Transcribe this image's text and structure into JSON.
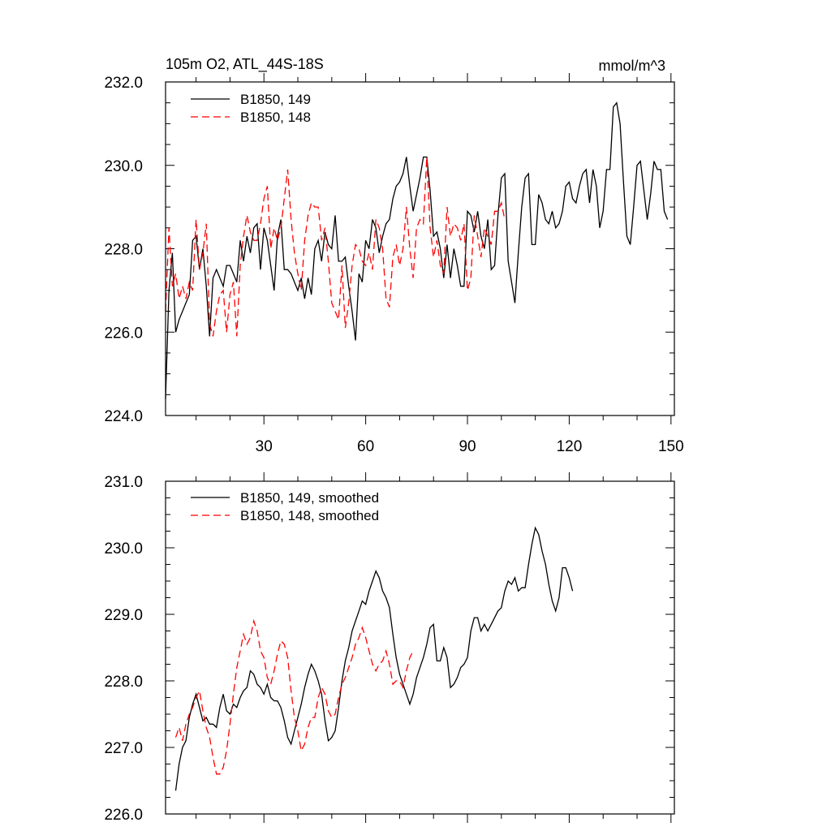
{
  "colors": {
    "run149": "#000000",
    "run148": "#ff0000",
    "axes": "#000000",
    "background": "#ffffff"
  },
  "chart_data": [
    {
      "type": "line",
      "title_left": "105m O2, ATL_44S-18S",
      "title_right": "mmol/m^3",
      "xlim": [
        1,
        151
      ],
      "ylim": [
        224,
        232
      ],
      "xticks": [
        30,
        60,
        90,
        120,
        150
      ],
      "xtick_labels": [
        "30",
        "60",
        "90",
        "120",
        "150"
      ],
      "yticks": [
        224,
        226,
        228,
        230,
        232
      ],
      "ytick_labels": [
        "224.0",
        "226.0",
        "228.0",
        "230.0",
        "232.0"
      ],
      "legend": "top-left",
      "series": [
        {
          "name": "B1850, 149",
          "style": "solid",
          "color": "#000000",
          "x_start": 1,
          "values": [
            224.4,
            227.0,
            227.9,
            226.0,
            226.3,
            226.5,
            226.7,
            226.9,
            228.2,
            228.3,
            227.5,
            228.0,
            227.1,
            225.9,
            227.3,
            227.5,
            227.3,
            227.1,
            227.6,
            227.6,
            227.4,
            227.2,
            228.2,
            227.7,
            228.3,
            227.9,
            228.5,
            228.6,
            227.5,
            228.5,
            228.2,
            227.6,
            227.0,
            228.3,
            228.7,
            227.5,
            227.5,
            227.4,
            227.2,
            227.0,
            227.3,
            226.8,
            227.3,
            226.9,
            228.0,
            228.2,
            227.7,
            228.4,
            228.1,
            228.0,
            228.8,
            227.7,
            227.7,
            227.8,
            227.1,
            226.5,
            225.8,
            227.4,
            227.2,
            228.2,
            228.0,
            228.7,
            228.5,
            227.9,
            228.3,
            228.6,
            228.7,
            229.2,
            229.5,
            229.6,
            229.8,
            230.2,
            229.5,
            228.9,
            229.3,
            229.7,
            230.2,
            230.2,
            229.4,
            228.3,
            228.4,
            228.0,
            227.3,
            228.1,
            227.3,
            228.0,
            227.6,
            227.1,
            227.1,
            228.9,
            228.8,
            228.4,
            228.9,
            228.3,
            228.0,
            228.7,
            227.5,
            227.6,
            228.8,
            229.7,
            229.8,
            227.7,
            227.2,
            226.7,
            227.9,
            229.0,
            229.7,
            229.8,
            228.1,
            228.1,
            229.3,
            229.1,
            228.7,
            228.6,
            228.9,
            228.5,
            228.6,
            228.9,
            229.5,
            229.6,
            229.2,
            229.1,
            229.5,
            229.8,
            229.9,
            229.1,
            229.9,
            229.5,
            228.5,
            228.9,
            229.9,
            229.9,
            231.4,
            231.5,
            231.0,
            229.6,
            228.3,
            228.1,
            229.0,
            230.0,
            230.1,
            229.4,
            228.7,
            229.3,
            230.1,
            229.9,
            229.9,
            228.9,
            228.7
          ]
        },
        {
          "name": "B1850, 148",
          "style": "dashed",
          "color": "#ff0000",
          "x_start": 1,
          "values": [
            226.5,
            228.5,
            227.1,
            227.4,
            226.8,
            227.1,
            226.8,
            227.2,
            227.0,
            228.7,
            227.5,
            227.9,
            228.6,
            226.2,
            225.9,
            226.5,
            226.9,
            227.0,
            226.0,
            226.9,
            227.2,
            225.9,
            227.6,
            228.3,
            228.8,
            228.4,
            228.2,
            228.2,
            228.6,
            229.2,
            229.5,
            228.0,
            228.5,
            228.2,
            228.5,
            229.2,
            229.9,
            228.7,
            227.9,
            227.4,
            227.0,
            228.2,
            228.8,
            229.1,
            229.0,
            229.0,
            228.2,
            228.5,
            227.7,
            226.7,
            226.5,
            226.3,
            227.6,
            226.1,
            226.7,
            227.6,
            228.1,
            228.0,
            227.7,
            227.6,
            227.9,
            227.5,
            228.7,
            228.5,
            228.0,
            226.8,
            226.6,
            227.8,
            228.1,
            227.6,
            228.0,
            229.0,
            228.0,
            227.3,
            228.5,
            228.7,
            228.6,
            230.2,
            228.5,
            227.8,
            228.2,
            227.6,
            227.4,
            229.0,
            228.3,
            228.6,
            228.5,
            228.2,
            228.6,
            227.0,
            227.3,
            228.8,
            228.3,
            227.8,
            228.5,
            228.3,
            228.1,
            228.9,
            228.9,
            229.1,
            228.7
          ]
        }
      ]
    },
    {
      "type": "line",
      "xlim": [
        1,
        151
      ],
      "ylim": [
        226,
        231
      ],
      "xticks": [
        30,
        60,
        90,
        120,
        150
      ],
      "yticks": [
        226,
        227,
        228,
        229,
        230,
        231
      ],
      "ytick_labels": [
        "226.0",
        "227.0",
        "228.0",
        "229.0",
        "230.0",
        "231.0"
      ],
      "legend": "top-left",
      "series": [
        {
          "name": "B1850, 149, smoothed",
          "style": "solid",
          "color": "#000000",
          "x_start": 4,
          "values": [
            226.35,
            226.75,
            227.0,
            227.1,
            227.45,
            227.65,
            227.8,
            227.6,
            227.4,
            227.45,
            227.35,
            227.35,
            227.3,
            227.6,
            227.8,
            227.55,
            227.5,
            227.65,
            227.6,
            227.75,
            227.85,
            227.9,
            228.15,
            228.1,
            227.95,
            227.9,
            227.8,
            227.95,
            227.75,
            227.7,
            227.7,
            227.6,
            227.4,
            227.15,
            227.05,
            227.25,
            227.45,
            227.65,
            227.9,
            228.1,
            228.25,
            228.15,
            228.0,
            227.8,
            227.4,
            227.1,
            227.15,
            227.25,
            227.6,
            228.0,
            228.3,
            228.5,
            228.75,
            228.9,
            229.05,
            229.2,
            229.15,
            229.35,
            229.5,
            229.65,
            229.55,
            229.35,
            229.25,
            229.1,
            228.7,
            228.35,
            228.1,
            227.95,
            227.8,
            227.65,
            227.8,
            228.05,
            228.2,
            228.35,
            228.55,
            228.8,
            228.85,
            228.3,
            228.3,
            228.5,
            228.35,
            227.9,
            227.95,
            228.05,
            228.2,
            228.25,
            228.35,
            228.75,
            228.95,
            228.95,
            228.75,
            228.85,
            228.75,
            228.85,
            228.95,
            229.05,
            229.1,
            229.35,
            229.5,
            229.45,
            229.55,
            229.35,
            229.4,
            229.4,
            229.75,
            230.05,
            230.3,
            230.2,
            229.95,
            229.75,
            229.45,
            229.2,
            229.05,
            229.25,
            229.7,
            229.7,
            229.55,
            229.35
          ]
        },
        {
          "name": "B1850, 148, smoothed",
          "style": "dashed",
          "color": "#ff0000",
          "x_start": 4,
          "values": [
            227.15,
            227.3,
            227.1,
            227.35,
            227.5,
            227.6,
            227.75,
            227.85,
            227.55,
            227.3,
            227.15,
            226.85,
            226.6,
            226.6,
            226.7,
            226.95,
            227.35,
            227.8,
            228.2,
            228.45,
            228.7,
            228.55,
            228.65,
            228.9,
            228.75,
            228.45,
            228.35,
            228.05,
            227.95,
            228.15,
            228.4,
            228.6,
            228.55,
            228.35,
            227.85,
            227.45,
            227.25,
            226.95,
            227.05,
            227.3,
            227.45,
            227.45,
            227.75,
            227.9,
            227.8,
            227.55,
            227.45,
            227.5,
            227.75,
            227.95,
            228.05,
            228.2,
            228.35,
            228.55,
            228.65,
            228.8,
            228.65,
            228.45,
            228.25,
            228.15,
            228.25,
            228.3,
            228.45,
            228.25,
            227.95,
            228.0,
            228.0,
            227.9,
            228.15,
            228.35,
            228.45
          ]
        }
      ]
    }
  ]
}
